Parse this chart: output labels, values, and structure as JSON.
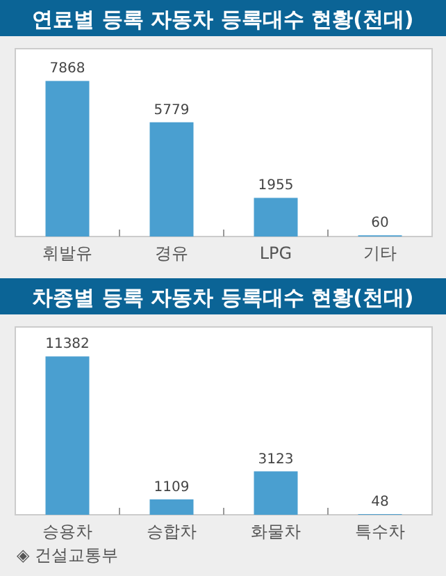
{
  "chart_data": [
    {
      "type": "bar",
      "title": "연료별 등록 자동차 등록대수 현황(천대)",
      "categories": [
        "휘발유",
        "경유",
        "LPG",
        "기타"
      ],
      "values": [
        7868,
        5779,
        1955,
        60
      ],
      "color": "#4a9fd0",
      "data_labels": true,
      "ylim": [
        0,
        9500
      ]
    },
    {
      "type": "bar",
      "title": "차종별 등록 자동차 등록대수 현황(천대)",
      "categories": [
        "승용차",
        "승합차",
        "화물차",
        "특수차"
      ],
      "values": [
        11382,
        1109,
        3123,
        48
      ],
      "color": "#4a9fd0",
      "data_labels": true,
      "ylim": [
        0,
        13500
      ],
      "annotations": [
        "◈ 건설교통부"
      ]
    }
  ]
}
